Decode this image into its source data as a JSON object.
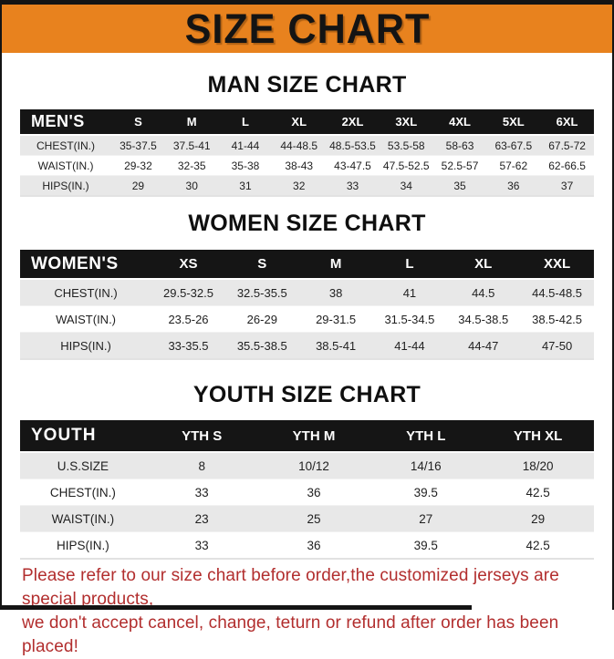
{
  "title": "SIZE CHART",
  "colors": {
    "banner_orange": "#E8821E",
    "table_header_black": "#151515",
    "row_gray": "#E8E8E8",
    "footer_red": "#B22E2E"
  },
  "chart_data": [
    {
      "type": "table",
      "title": "MAN SIZE CHART",
      "columns": [
        "MEN'S",
        "S",
        "M",
        "L",
        "XL",
        "2XL",
        "3XL",
        "4XL",
        "5XL",
        "6XL"
      ],
      "rows": [
        [
          "CHEST(IN.)",
          "35-37.5",
          "37.5-41",
          "41-44",
          "44-48.5",
          "48.5-53.5",
          "53.5-58",
          "58-63",
          "63-67.5",
          "67.5-72"
        ],
        [
          "WAIST(IN.)",
          "29-32",
          "32-35",
          "35-38",
          "38-43",
          "43-47.5",
          "47.5-52.5",
          "52.5-57",
          "57-62",
          "62-66.5"
        ],
        [
          "HIPS(IN.)",
          "29",
          "30",
          "31",
          "32",
          "33",
          "34",
          "35",
          "36",
          "37"
        ]
      ]
    },
    {
      "type": "table",
      "title": "WOMEN SIZE CHART",
      "columns": [
        "WOMEN'S",
        "XS",
        "S",
        "M",
        "L",
        "XL",
        "XXL"
      ],
      "rows": [
        [
          "CHEST(IN.)",
          "29.5-32.5",
          "32.5-35.5",
          "38",
          "41",
          "44.5",
          "44.5-48.5"
        ],
        [
          "WAIST(IN.)",
          "23.5-26",
          "26-29",
          "29-31.5",
          "31.5-34.5",
          "34.5-38.5",
          "38.5-42.5"
        ],
        [
          "HIPS(IN.)",
          "33-35.5",
          "35.5-38.5",
          "38.5-41",
          "41-44",
          "44-47",
          "47-50"
        ]
      ]
    },
    {
      "type": "table",
      "title": "YOUTH SIZE CHART",
      "columns": [
        "YOUTH",
        "YTH S",
        "YTH M",
        "YTH L",
        "YTH XL"
      ],
      "rows": [
        [
          "U.S.SIZE",
          "8",
          "10/12",
          "14/16",
          "18/20"
        ],
        [
          "CHEST(IN.)",
          "33",
          "36",
          "39.5",
          "42.5"
        ],
        [
          "WAIST(IN.)",
          "23",
          "25",
          "27",
          "29"
        ],
        [
          "HIPS(IN.)",
          "33",
          "36",
          "39.5",
          "42.5"
        ]
      ]
    }
  ],
  "footer": {
    "line1": "Please refer to our size chart before order,the customized jerseys are special products,",
    "line2": "we don't accept cancel, change, teturn or refund after order has been placed!"
  }
}
